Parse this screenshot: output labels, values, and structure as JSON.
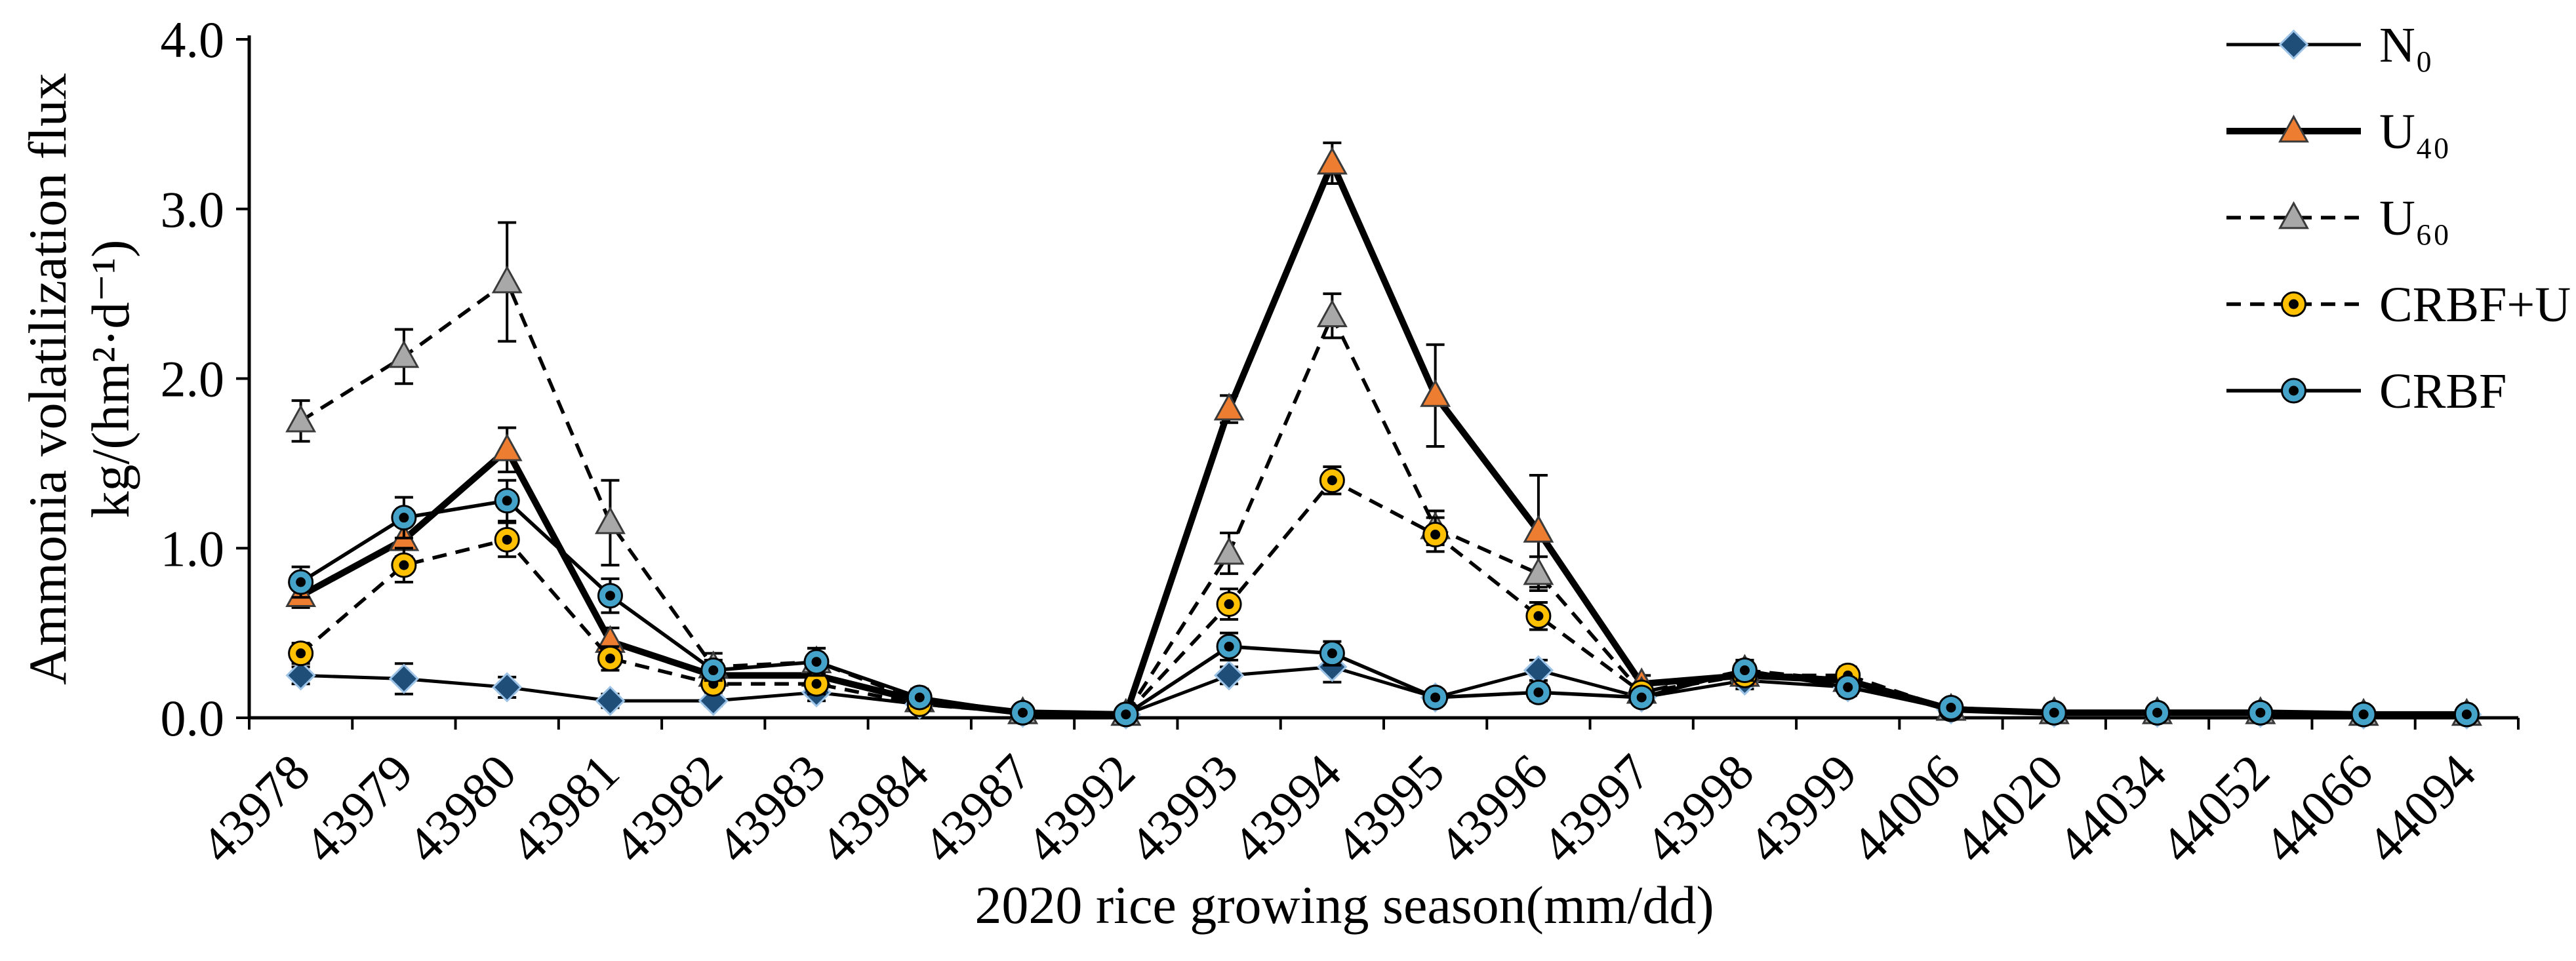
{
  "chart_data": {
    "type": "line",
    "title": "",
    "xlabel": "2020 rice growing season(mm/dd)",
    "ylabel_line1": "Ammonia volatilization flux",
    "ylabel_line2": "kg/(hm²·d⁻¹)",
    "ylim": [
      0,
      4
    ],
    "yticks": [
      0,
      1,
      2,
      3,
      4
    ],
    "ytick_labels": [
      "0.0",
      "1.0",
      "2.0",
      "3.0",
      "4.0"
    ],
    "grid": false,
    "legend_position": "top-right",
    "line_color": "#000000",
    "categories": [
      "43978",
      "43979",
      "43980",
      "43981",
      "43982",
      "43983",
      "43984",
      "43987",
      "43992",
      "43993",
      "43994",
      "43995",
      "43996",
      "43997",
      "43998",
      "43999",
      "44006",
      "44020",
      "44034",
      "44052",
      "44066",
      "44094"
    ],
    "series": [
      {
        "name": "N₀",
        "marker": "diamond",
        "fill": "#1f4e79",
        "edge": "#9dc3e6",
        "dash": "solid",
        "width": 5,
        "values": [
          0.25,
          0.23,
          0.18,
          0.1,
          0.1,
          0.15,
          0.08,
          0.03,
          0.02,
          0.25,
          0.3,
          0.12,
          0.28,
          0.12,
          0.22,
          0.18,
          0.05,
          0.03,
          0.03,
          0.03,
          0.02,
          0.02
        ],
        "errors": [
          0.05,
          0.09,
          0.06,
          0.04,
          0.03,
          0.05,
          0.03,
          0.02,
          0.01,
          0.05,
          0.09,
          0.04,
          0.06,
          0.04,
          0.05,
          0.04,
          0.02,
          0.01,
          0.01,
          0.01,
          0.01,
          0.01
        ]
      },
      {
        "name": "U₄₀",
        "marker": "triangle",
        "fill": "#ed7d31",
        "edge": "#3a3a3a",
        "dash": "solid",
        "width": 10,
        "values": [
          0.72,
          1.05,
          1.58,
          0.45,
          0.25,
          0.25,
          0.1,
          0.03,
          0.02,
          1.82,
          3.27,
          1.9,
          1.1,
          0.2,
          0.25,
          0.22,
          0.05,
          0.03,
          0.03,
          0.03,
          0.02,
          0.02
        ],
        "errors": [
          0.07,
          0.1,
          0.13,
          0.08,
          0.05,
          0.06,
          0.04,
          0.02,
          0.01,
          0.08,
          0.12,
          0.3,
          0.33,
          0.05,
          0.06,
          0.05,
          0.02,
          0.01,
          0.01,
          0.01,
          0.01,
          0.01
        ]
      },
      {
        "name": "U₆₀",
        "marker": "triangle",
        "fill": "#a8a8a8",
        "edge": "#3a3a3a",
        "dash": "dashed",
        "width": 5.5,
        "values": [
          1.75,
          2.13,
          2.57,
          1.15,
          0.3,
          0.33,
          0.1,
          0.03,
          0.02,
          0.97,
          2.37,
          1.12,
          0.85,
          0.15,
          0.28,
          0.22,
          0.05,
          0.03,
          0.03,
          0.03,
          0.02,
          0.02
        ],
        "errors": [
          0.12,
          0.16,
          0.35,
          0.25,
          0.08,
          0.08,
          0.05,
          0.02,
          0.01,
          0.12,
          0.13,
          0.1,
          0.1,
          0.05,
          0.06,
          0.05,
          0.02,
          0.01,
          0.01,
          0.01,
          0.01,
          0.01
        ]
      },
      {
        "name": "CRBF+U",
        "marker": "circle-dot",
        "fill": "#ffc000",
        "edge": "#000000",
        "dash": "dashed",
        "width": 5.5,
        "values": [
          0.38,
          0.9,
          1.05,
          0.35,
          0.2,
          0.2,
          0.08,
          0.03,
          0.02,
          0.67,
          1.4,
          1.08,
          0.6,
          0.15,
          0.25,
          0.25,
          0.05,
          0.03,
          0.03,
          0.03,
          0.02,
          0.02
        ],
        "errors": [
          0.06,
          0.1,
          0.1,
          0.07,
          0.05,
          0.06,
          0.04,
          0.02,
          0.01,
          0.09,
          0.08,
          0.1,
          0.08,
          0.04,
          0.05,
          0.05,
          0.02,
          0.01,
          0.01,
          0.01,
          0.01,
          0.01
        ]
      },
      {
        "name": "CRBF",
        "marker": "circle-dot",
        "fill": "#45a3c9",
        "edge": "#000000",
        "dash": "solid",
        "width": 5.5,
        "values": [
          0.8,
          1.18,
          1.28,
          0.72,
          0.28,
          0.33,
          0.12,
          0.03,
          0.02,
          0.42,
          0.38,
          0.12,
          0.15,
          0.12,
          0.28,
          0.18,
          0.06,
          0.03,
          0.03,
          0.03,
          0.02,
          0.02
        ],
        "errors": [
          0.09,
          0.12,
          0.12,
          0.1,
          0.06,
          0.08,
          0.05,
          0.02,
          0.01,
          0.08,
          0.07,
          0.04,
          0.05,
          0.04,
          0.06,
          0.05,
          0.02,
          0.01,
          0.01,
          0.01,
          0.01,
          0.01
        ]
      }
    ]
  }
}
